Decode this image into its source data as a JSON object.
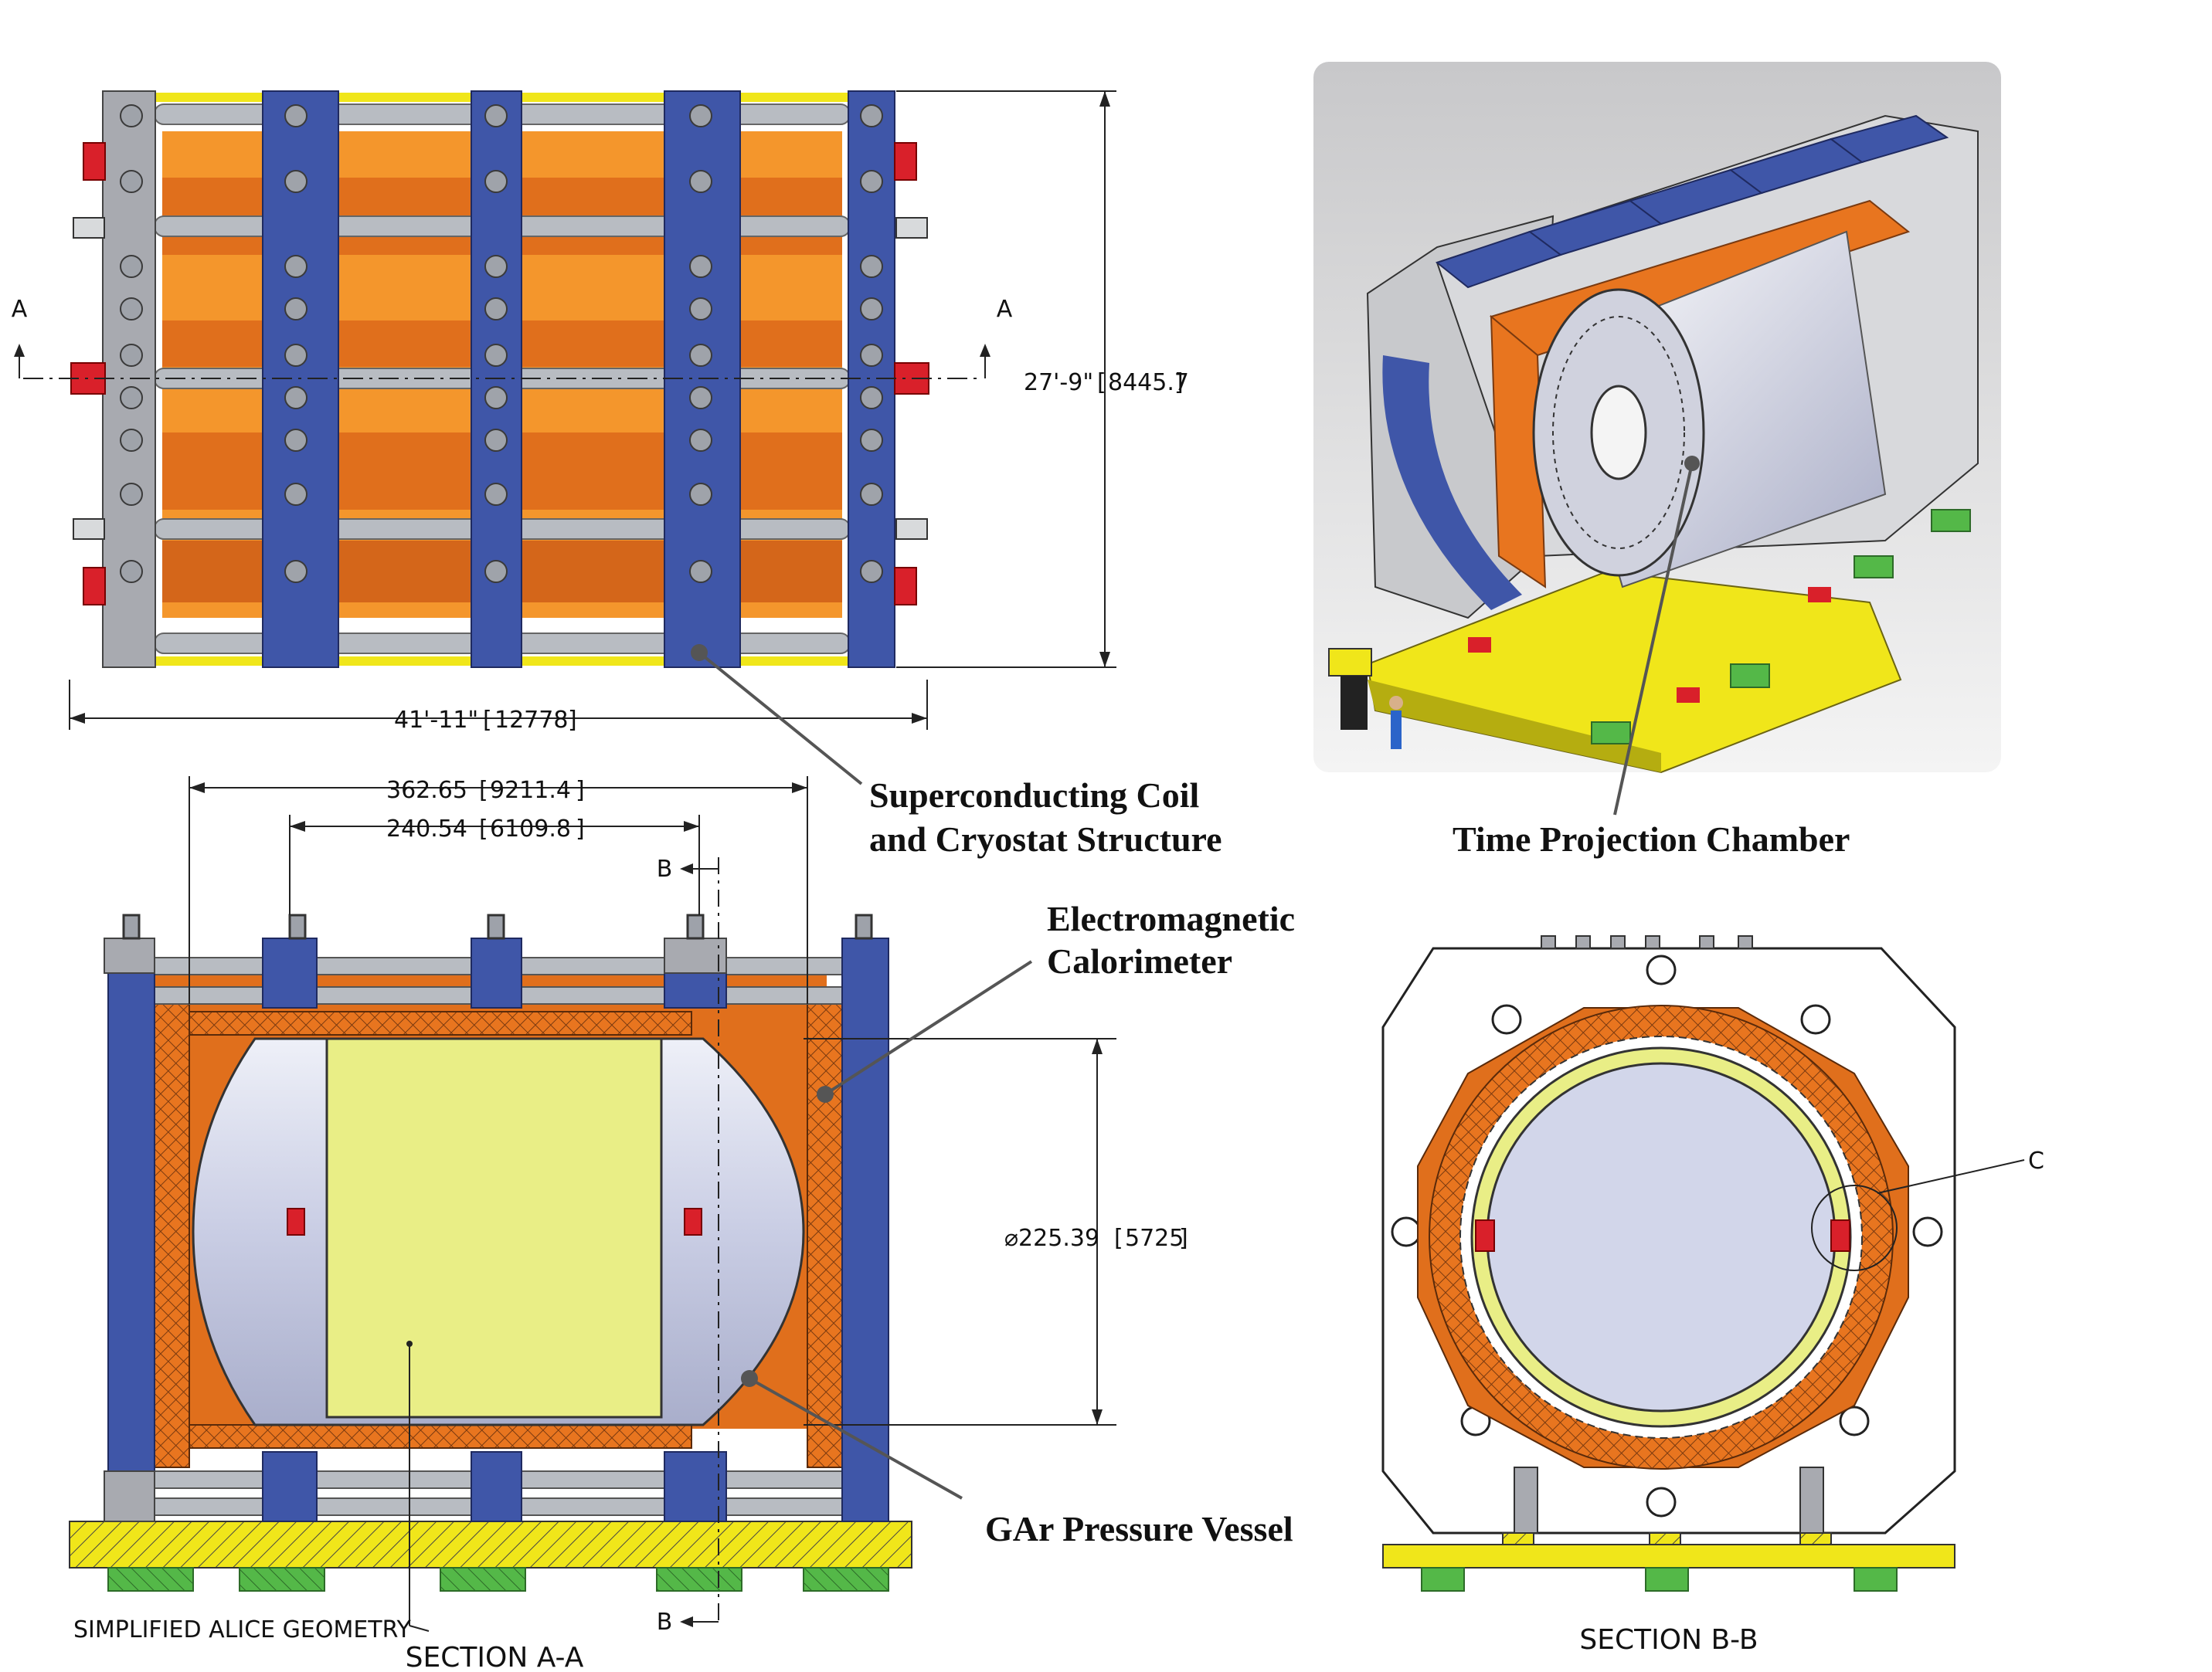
{
  "top_view": {
    "section_mark": "A",
    "height_dim": "27'-9\"",
    "height_dim_metric": "8445.7",
    "width_dim": "41'-11\"",
    "width_dim_metric": "12778"
  },
  "section_a": {
    "dim_outer": "362.65",
    "dim_outer_metric": "9211.4",
    "dim_inner": "240.54",
    "dim_inner_metric": "6109.8",
    "diameter": "⌀225.39",
    "diameter_metric": "5725",
    "section_mark_b": "B",
    "geometry_label": "SIMPLIFIED ALICE GEOMETRY",
    "title": "SECTION A-A"
  },
  "section_b": {
    "detail_mark": "C",
    "title": "SECTION B-B"
  },
  "callouts": {
    "coil_line1": "Superconducting Coil",
    "coil_line2": "and Cryostat Structure",
    "tpc": "Time Projection Chamber",
    "ecal_line1": "Electromagnetic",
    "ecal_line2": "Calorimeter",
    "gar": "GAr Pressure Vessel"
  },
  "colors": {
    "steel_blue": "#3f56a8",
    "orange": "#e8751f",
    "orange_light": "#f4962c",
    "yellow": "#f0e61a",
    "green": "#54b848",
    "red": "#d9202a",
    "grey": "#a8aab0",
    "vessel": "#d2d6ea",
    "tpc_yellow": "#e9ee86"
  }
}
